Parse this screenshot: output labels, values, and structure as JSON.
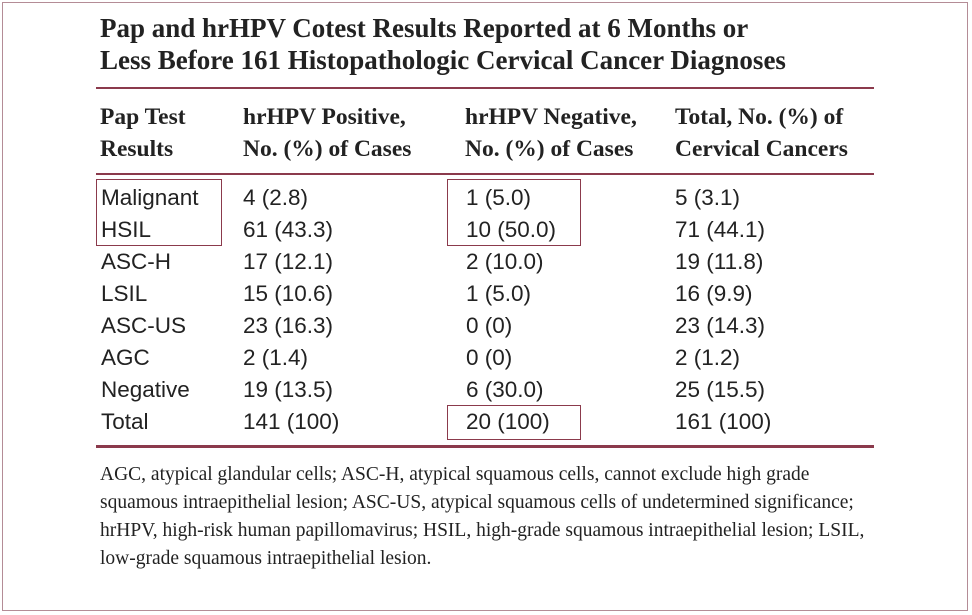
{
  "title_line1": "Pap and hrHPV Cotest Results Reported at 6 Months or",
  "title_line2": "Less Before 161 Histopathologic Cervical Cancer Diagnoses",
  "headers": [
    {
      "line1": "Pap Test",
      "line2": "Results"
    },
    {
      "line1": "hrHPV Positive,",
      "line2": "No. (%) of Cases"
    },
    {
      "line1": "hrHPV Negative,",
      "line2": "No. (%) of Cases"
    },
    {
      "line1": "Total, No. (%) of",
      "line2": "Cervical Cancers"
    }
  ],
  "rows": [
    [
      "Malignant",
      "4 (2.8)",
      "1 (5.0)",
      "5 (3.1)"
    ],
    [
      "HSIL",
      "61 (43.3)",
      "10 (50.0)",
      "71 (44.1)"
    ],
    [
      "ASC-H",
      "17 (12.1)",
      "2 (10.0)",
      "19 (11.8)"
    ],
    [
      "LSIL",
      "15 (10.6)",
      "1 (5.0)",
      "16 (9.9)"
    ],
    [
      "ASC-US",
      "23 (16.3)",
      "0 (0)",
      "23 (14.3)"
    ],
    [
      "AGC",
      "2 (1.4)",
      "0 (0)",
      "2 (1.2)"
    ],
    [
      "Negative",
      "19 (13.5)",
      "6 (30.0)",
      "25 (15.5)"
    ],
    [
      "Total",
      "141 (100)",
      "20 (100)",
      "161 (100)"
    ]
  ],
  "footnote": "AGC, atypical glandular cells; ASC-H, atypical squamous cells, cannot exclude high grade squamous intraepithelial lesion; ASC-US, atypical squamous cells of undetermined significance; hrHPV, high-risk human papillomavirus; HSIL, high-grade squamous intraepithelial lesion; LSIL, low-grade squamous intraepithelial lesion.",
  "colors": {
    "rule": "#8b3a4c",
    "frame": "#b48c96",
    "text": "#222222"
  }
}
